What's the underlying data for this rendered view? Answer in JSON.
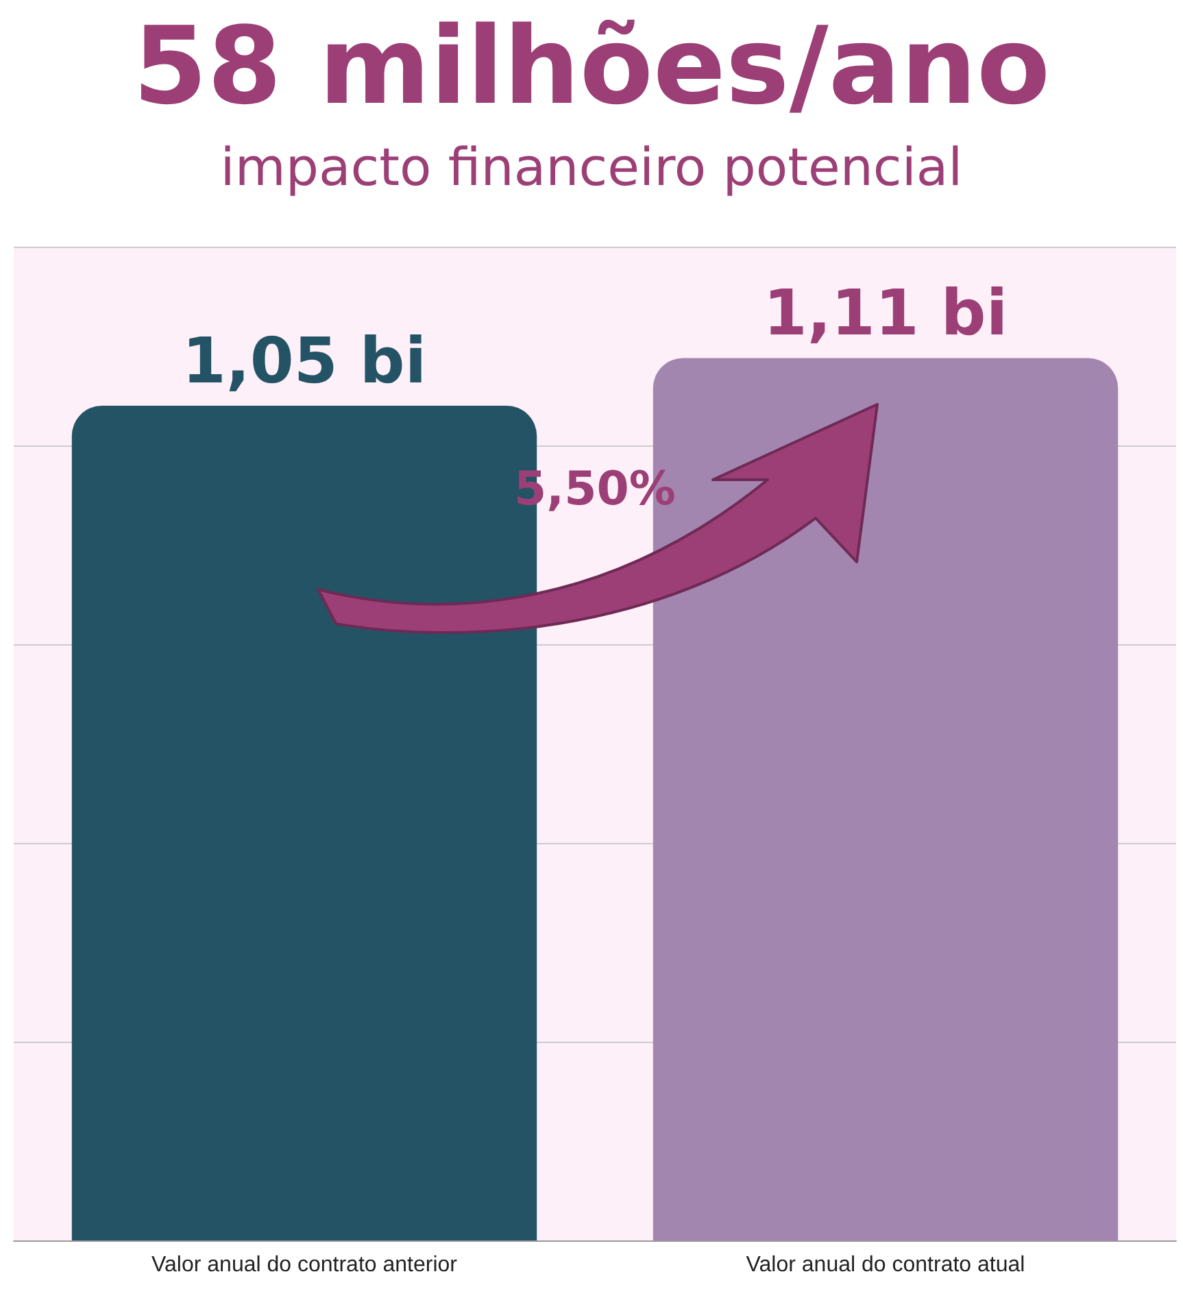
{
  "chart_data": {
    "type": "bar",
    "title": "58 milhões/ano",
    "subtitle": "impacto financeiro potencial",
    "categories": [
      "Valor anual do contrato anterior",
      "Valor anual do contrato atual"
    ],
    "values": [
      1.05,
      1.11
    ],
    "colors": [
      "#235365",
      "#a286b0"
    ],
    "value_labels": [
      "1,05 bi",
      "1,11 bi"
    ],
    "ylim": [
      0,
      1.25
    ],
    "yticks": [
      {
        "value": 0,
        "label": null
      },
      {
        "value": 0.25,
        "label": null
      },
      {
        "value": 0.5,
        "label": null
      },
      {
        "value": 0.75,
        "label": null
      },
      {
        "value": 1,
        "label": null
      },
      {
        "value": 1.25,
        "label": null
      }
    ],
    "tick_labels": "x",
    "grid": "y",
    "annotations": [
      "5,50%"
    ]
  }
}
